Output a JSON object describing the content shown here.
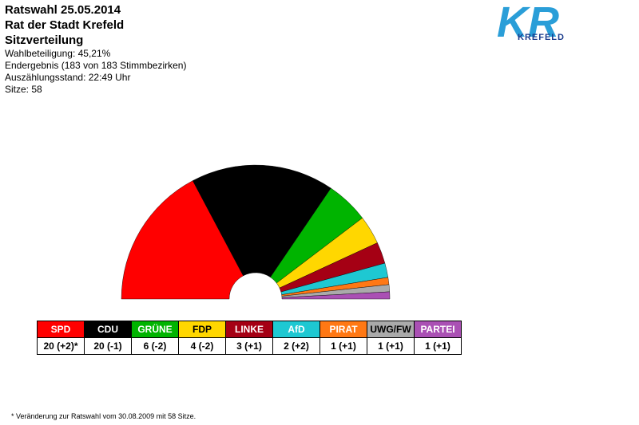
{
  "header": {
    "title_lines": [
      "Ratswahl 25.05.2014",
      "Rat der Stadt Krefeld",
      "Sitzverteilung"
    ],
    "info_lines": [
      "Wahlbeteiligung: 45,21%",
      "Endergebnis (183 von 183 Stimmbezirken)",
      "Auszählungsstand: 22:49 Uhr",
      "Sitze: 58"
    ]
  },
  "logo": {
    "text": "KR",
    "subtext": "KREFELD",
    "color": "#2a9ed8"
  },
  "chart_data": {
    "type": "pie",
    "variant": "semicircle-parliament",
    "total_seats": 58,
    "categories": [
      "SPD",
      "CDU",
      "GRÜNE",
      "FDP",
      "LINKE",
      "AfD",
      "PIRAT",
      "UWG/FW",
      "PARTEI"
    ],
    "values": [
      20,
      20,
      6,
      4,
      3,
      2,
      1,
      1,
      1
    ],
    "changes": [
      "+2",
      "-1",
      "-2",
      "-2",
      "+1",
      "+2",
      "+1",
      "+1",
      "+1"
    ],
    "cell_labels": [
      "20 (+2)*",
      "20 (-1)",
      "6 (-2)",
      "4 (-2)",
      "3 (+1)",
      "2 (+2)",
      "1 (+1)",
      "1 (+1)",
      "1 (+1)"
    ],
    "colors": [
      "#ff0000",
      "#000000",
      "#00b400",
      "#ffd700",
      "#a50014",
      "#1ec8d2",
      "#ff7814",
      "#aaaaaa",
      "#aa50b4"
    ],
    "label_colors": [
      "#ffffff",
      "#ffffff",
      "#ffffff",
      "#000000",
      "#ffffff",
      "#ffffff",
      "#ffffff",
      "#000000",
      "#ffffff"
    ]
  },
  "footnote": "* Veränderung zur Ratswahl vom 30.08.2009 mit 58 Sitze."
}
